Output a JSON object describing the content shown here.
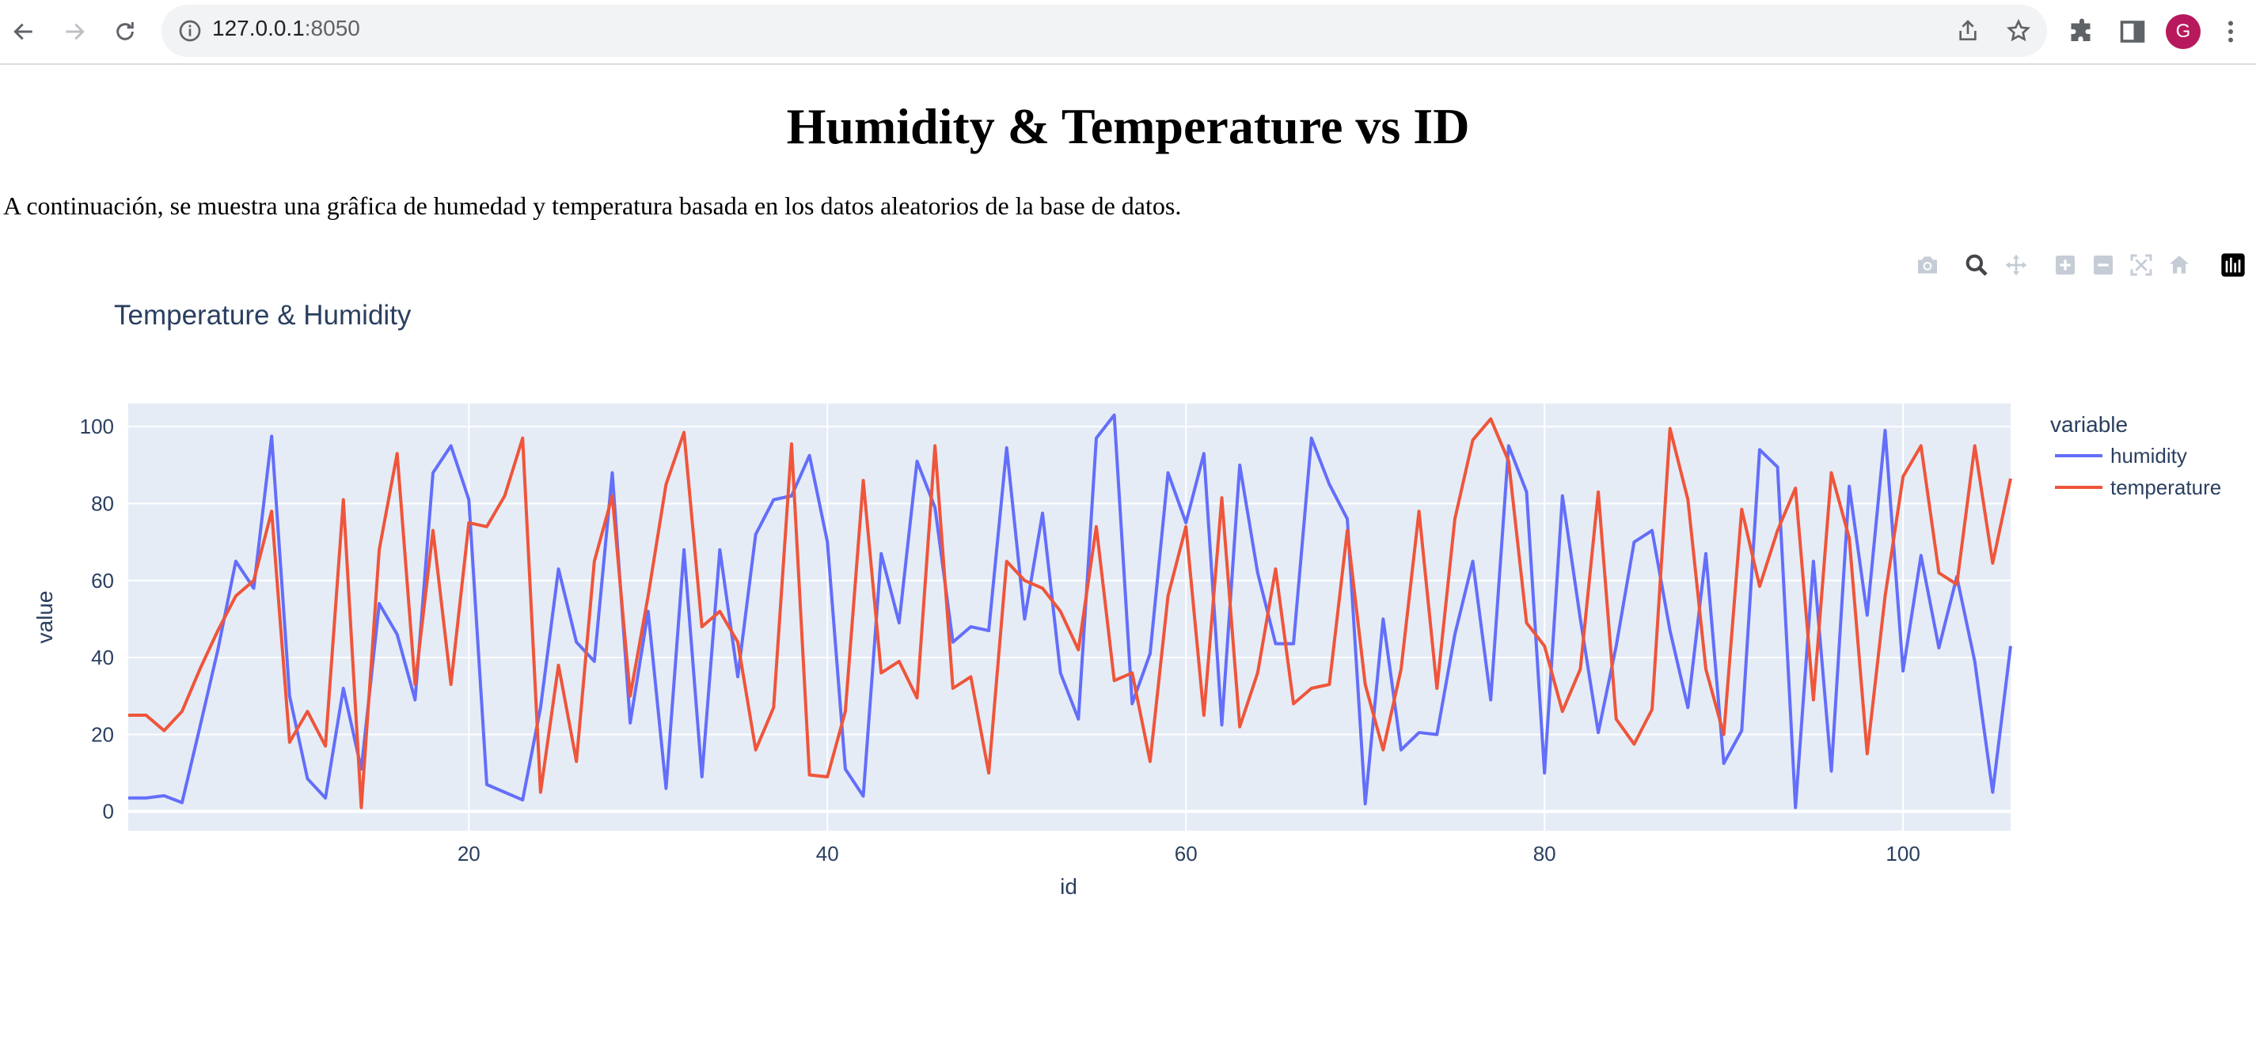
{
  "browser": {
    "url_host": "127.0.0.1",
    "url_port": ":8050",
    "avatar_letter": "G"
  },
  "page": {
    "heading": "Humidity & Temperature vs ID",
    "description": "A continuación, se muestra una grâfica de humedad y temperatura basada en los datos aleatorios de la base de datos."
  },
  "modebar": [
    "camera-icon",
    "zoom-icon",
    "pan-icon",
    "zoom-in-icon",
    "zoom-out-icon",
    "autoscale-icon",
    "reset-axes-icon",
    "plotly-logo-icon"
  ],
  "colors": {
    "humidity": "#636efa",
    "temperature": "#ef553b",
    "plot_bg": "#e5ecf6",
    "text": "#2a3f5f"
  },
  "chart_data": {
    "type": "line",
    "title": "Temperature & Humidity",
    "xlabel": "id",
    "ylabel": "value",
    "legend_title": "variable",
    "legend_position": "right",
    "grid": true,
    "xlim": [
      1,
      106
    ],
    "ylim": [
      -5,
      106
    ],
    "xticks": [
      20,
      40,
      60,
      80,
      100
    ],
    "yticks": [
      0,
      20,
      40,
      60,
      80,
      100
    ],
    "x_start": 1,
    "series": [
      {
        "name": "humidity",
        "values": [
          3.5,
          3.5,
          4.1,
          2.3,
          22,
          42,
          65,
          58,
          97.5,
          30,
          8.5,
          3.5,
          32,
          11,
          54,
          46,
          29,
          88,
          95,
          81,
          7,
          5,
          3,
          27,
          63,
          44,
          39,
          88,
          23,
          52,
          6,
          68,
          9,
          68,
          35,
          72,
          81,
          82,
          92.5,
          70,
          11,
          4,
          67,
          49,
          91,
          79,
          44,
          48,
          47,
          94.5,
          50,
          77.5,
          36,
          24,
          97,
          103,
          28,
          41,
          88,
          75,
          93,
          22.5,
          90,
          62,
          43.6,
          43.6,
          97,
          85,
          76,
          2,
          50,
          16,
          20.5,
          20,
          46,
          65,
          29,
          95,
          83,
          10,
          82,
          50,
          20.5,
          43,
          70,
          73,
          47,
          27,
          67,
          12.5,
          21,
          94,
          89.5,
          1,
          65,
          10.5,
          84.5,
          51,
          99,
          36.5,
          66.5,
          42.5,
          61,
          39,
          5,
          43
        ]
      },
      {
        "name": "temperature",
        "values": [
          25,
          25,
          21,
          26,
          37,
          47,
          56,
          60,
          78,
          18,
          26,
          17,
          81,
          1,
          68,
          93,
          33,
          73,
          33,
          75,
          74,
          82,
          97,
          5,
          38,
          13,
          65,
          82,
          30,
          56,
          85,
          98.5,
          48,
          52,
          44,
          16,
          27,
          95.5,
          9.5,
          9,
          26,
          86,
          36,
          39,
          29.5,
          95,
          32,
          35,
          10,
          65,
          60,
          58,
          52,
          42,
          74,
          34,
          36,
          13,
          56,
          74,
          25,
          81.5,
          22,
          36,
          63,
          28,
          32,
          33,
          73,
          33,
          16,
          37,
          78,
          32,
          76,
          96.5,
          102,
          91,
          49,
          43,
          26,
          37,
          83,
          24,
          17.5,
          26.5,
          99.5,
          81,
          37,
          20,
          78.5,
          58.5,
          73,
          84,
          29,
          88,
          71,
          15,
          56,
          87,
          95,
          62,
          59,
          95,
          64.5,
          86.5
        ]
      }
    ]
  }
}
